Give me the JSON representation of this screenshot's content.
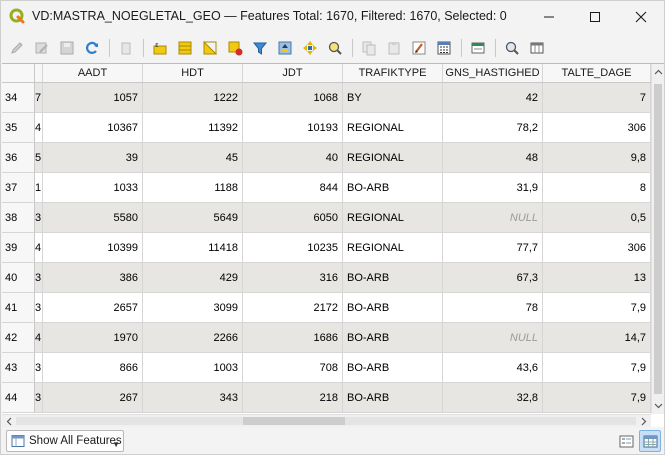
{
  "window": {
    "title": "VD:MASTRA_NOEGLETAL_GEO — Features Total: 1670, Filtered: 1670, Selected: 0"
  },
  "toolbar": {
    "icons": [
      "pencil-icon",
      "edit-multiple-icon",
      "save-icon",
      "reload-icon",
      "delete-icon",
      "field-calculator-icon",
      "select-all-icon",
      "invert-selection-icon",
      "deselect-icon",
      "filter-icon",
      "move-selection-top-icon",
      "pan-to-selection-icon",
      "zoom-to-selection-icon",
      "copy-icon",
      "paste-icon",
      "conditional-format-icon",
      "field-calc-icon",
      "dock-icon",
      "actions-icon",
      "zoom-map-icon",
      "organize-columns-icon"
    ]
  },
  "table": {
    "columns": [
      "AADT",
      "HDT",
      "JDT",
      "TRAFIKTYPE",
      "GNS_HASTIGHED",
      "TALTE_DAGE"
    ],
    "rows": [
      {
        "id": "34",
        "prev": "7",
        "aadt": "1057",
        "hdt": "1222",
        "jdt": "1068",
        "trafiktype": "BY",
        "gns": "42",
        "talte": "7"
      },
      {
        "id": "35",
        "prev": "4",
        "aadt": "10367",
        "hdt": "11392",
        "jdt": "10193",
        "trafiktype": "REGIONAL",
        "gns": "78,2",
        "talte": "306"
      },
      {
        "id": "36",
        "prev": "5",
        "aadt": "39",
        "hdt": "45",
        "jdt": "40",
        "trafiktype": "REGIONAL",
        "gns": "48",
        "talte": "9,8"
      },
      {
        "id": "37",
        "prev": "1",
        "aadt": "1033",
        "hdt": "1188",
        "jdt": "844",
        "trafiktype": "BO-ARB",
        "gns": "31,9",
        "talte": "8"
      },
      {
        "id": "38",
        "prev": "3",
        "aadt": "5580",
        "hdt": "5649",
        "jdt": "6050",
        "trafiktype": "REGIONAL",
        "gns": "NULL",
        "talte": "0,5"
      },
      {
        "id": "39",
        "prev": "4",
        "aadt": "10399",
        "hdt": "11418",
        "jdt": "10235",
        "trafiktype": "REGIONAL",
        "gns": "77,7",
        "talte": "306"
      },
      {
        "id": "40",
        "prev": "3",
        "aadt": "386",
        "hdt": "429",
        "jdt": "316",
        "trafiktype": "BO-ARB",
        "gns": "67,3",
        "talte": "13"
      },
      {
        "id": "41",
        "prev": "3",
        "aadt": "2657",
        "hdt": "3099",
        "jdt": "2172",
        "trafiktype": "BO-ARB",
        "gns": "78",
        "talte": "7,9"
      },
      {
        "id": "42",
        "prev": "4",
        "aadt": "1970",
        "hdt": "2266",
        "jdt": "1686",
        "trafiktype": "BO-ARB",
        "gns": "NULL",
        "talte": "14,7"
      },
      {
        "id": "43",
        "prev": "3",
        "aadt": "866",
        "hdt": "1003",
        "jdt": "708",
        "trafiktype": "BO-ARB",
        "gns": "43,6",
        "talte": "7,9"
      },
      {
        "id": "44",
        "prev": "3",
        "aadt": "267",
        "hdt": "343",
        "jdt": "218",
        "trafiktype": "BO-ARB",
        "gns": "32,8",
        "talte": "7,9"
      }
    ]
  },
  "bottombar": {
    "filter_label": "Show All Features"
  },
  "colors": {
    "alt_row": "#e7e6e2",
    "null_text": "#9a9a9a",
    "accent": "#c9dff5"
  }
}
